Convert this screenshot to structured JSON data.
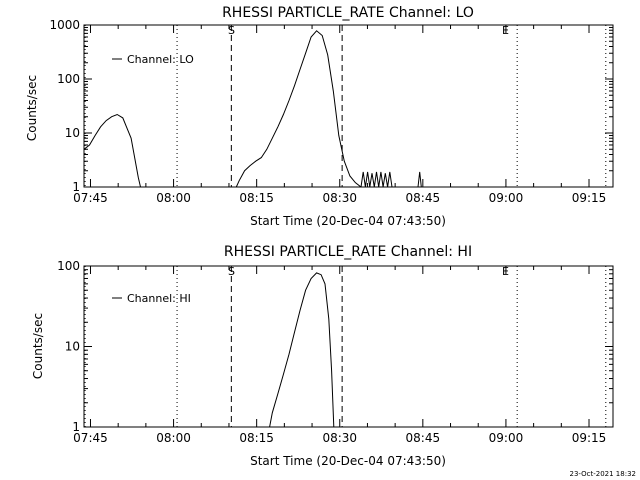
{
  "footer_timestamp": "23-Oct-2021 18:32",
  "chart_data": [
    {
      "type": "line",
      "title": "RHESSI PARTICLE_RATE Channel: LO",
      "xlabel": "Start Time (20-Dec-04 07:43:50)",
      "ylabel": "Counts/sec",
      "y_scale": "log",
      "ylim": [
        1,
        1000
      ],
      "xlim_minutes": [
        0,
        95.5
      ],
      "x_ticks": [
        {
          "label": "07:45",
          "minute": 1.17
        },
        {
          "label": "08:00",
          "minute": 16.17
        },
        {
          "label": "08:15",
          "minute": 31.17
        },
        {
          "label": "08:30",
          "minute": 46.17
        },
        {
          "label": "08:45",
          "minute": 61.17
        },
        {
          "label": "09:00",
          "minute": 76.17
        },
        {
          "label": "09:15",
          "minute": 91.17
        }
      ],
      "y_ticks": [
        {
          "label": "1",
          "value": 1
        },
        {
          "label": "10",
          "value": 10
        },
        {
          "label": "100",
          "value": 100
        },
        {
          "label": "1000",
          "value": 1000
        }
      ],
      "legend": {
        "label": "Channel: LO",
        "position": "top-left"
      },
      "markers": {
        "start_label": "S",
        "end_label": "E"
      },
      "vlines": [
        {
          "minute": 0.2,
          "style": "dotted"
        },
        {
          "minute": 16.8,
          "style": "dotted"
        },
        {
          "minute": 26.6,
          "style": "dashed"
        },
        {
          "minute": 46.6,
          "style": "dashed"
        },
        {
          "minute": 78.2,
          "style": "dotted"
        },
        {
          "minute": 94.2,
          "style": "dotted"
        }
      ],
      "series": [
        {
          "name": "Channel: LO",
          "x": [
            0,
            1,
            2,
            3,
            4,
            5,
            6,
            7,
            8.5,
            9.8,
            10.2
          ],
          "y": [
            5,
            6,
            9,
            13,
            17,
            20,
            22,
            19,
            8,
            1.5,
            1
          ]
        },
        {
          "name": "Channel: LO",
          "x": [
            27.5,
            28,
            29,
            30,
            31,
            32,
            33,
            34,
            35,
            36,
            37,
            38,
            39,
            40,
            41,
            42,
            43,
            44,
            45,
            46,
            47,
            48,
            49,
            50
          ],
          "y": [
            1,
            1.3,
            2,
            2.5,
            3,
            3.5,
            5,
            8,
            13,
            22,
            40,
            75,
            150,
            300,
            600,
            780,
            640,
            280,
            60,
            9,
            3,
            1.6,
            1.2,
            1
          ]
        },
        {
          "name": "Channel: LO",
          "x": [
            50,
            50.4,
            50.8,
            51.2,
            51.6,
            52,
            52.4,
            52.8,
            53.2,
            53.6,
            54,
            54.4,
            54.8,
            55.2,
            55.6,
            56
          ],
          "y": [
            1,
            1.9,
            1,
            1.9,
            1,
            1.8,
            1,
            1.9,
            1,
            1.9,
            1,
            1.8,
            1,
            1.9,
            1,
            1
          ]
        },
        {
          "name": "Channel: LO",
          "x": [
            60.3,
            60.6,
            60.9
          ],
          "y": [
            1,
            1.9,
            1
          ]
        }
      ]
    },
    {
      "type": "line",
      "title": "RHESSI PARTICLE_RATE Channel: HI",
      "xlabel": "Start Time (20-Dec-04 07:43:50)",
      "ylabel": "Counts/sec",
      "y_scale": "log",
      "ylim": [
        1,
        100
      ],
      "xlim_minutes": [
        0,
        95.5
      ],
      "x_ticks": [
        {
          "label": "07:45",
          "minute": 1.17
        },
        {
          "label": "08:00",
          "minute": 16.17
        },
        {
          "label": "08:15",
          "minute": 31.17
        },
        {
          "label": "08:30",
          "minute": 46.17
        },
        {
          "label": "08:45",
          "minute": 61.17
        },
        {
          "label": "09:00",
          "minute": 76.17
        },
        {
          "label": "09:15",
          "minute": 91.17
        }
      ],
      "y_ticks": [
        {
          "label": "1",
          "value": 1
        },
        {
          "label": "10",
          "value": 10
        },
        {
          "label": "100",
          "value": 100
        }
      ],
      "legend": {
        "label": "Channel: HI",
        "position": "top-left"
      },
      "markers": {
        "start_label": "S",
        "end_label": "E"
      },
      "vlines": [
        {
          "minute": 0.2,
          "style": "dotted"
        },
        {
          "minute": 16.8,
          "style": "dotted"
        },
        {
          "minute": 26.6,
          "style": "dashed"
        },
        {
          "minute": 46.6,
          "style": "dashed"
        },
        {
          "minute": 78.2,
          "style": "dotted"
        },
        {
          "minute": 94.2,
          "style": "dotted"
        }
      ],
      "series": [
        {
          "name": "Channel: HI",
          "x": [
            33.5,
            34,
            35,
            36,
            37,
            38,
            39,
            40,
            41,
            42,
            42.8,
            43.5,
            44.2,
            44.7,
            45.1
          ],
          "y": [
            1,
            1.5,
            2.6,
            4.5,
            8,
            15,
            28,
            50,
            70,
            82,
            78,
            60,
            22,
            5,
            1
          ]
        }
      ]
    }
  ]
}
